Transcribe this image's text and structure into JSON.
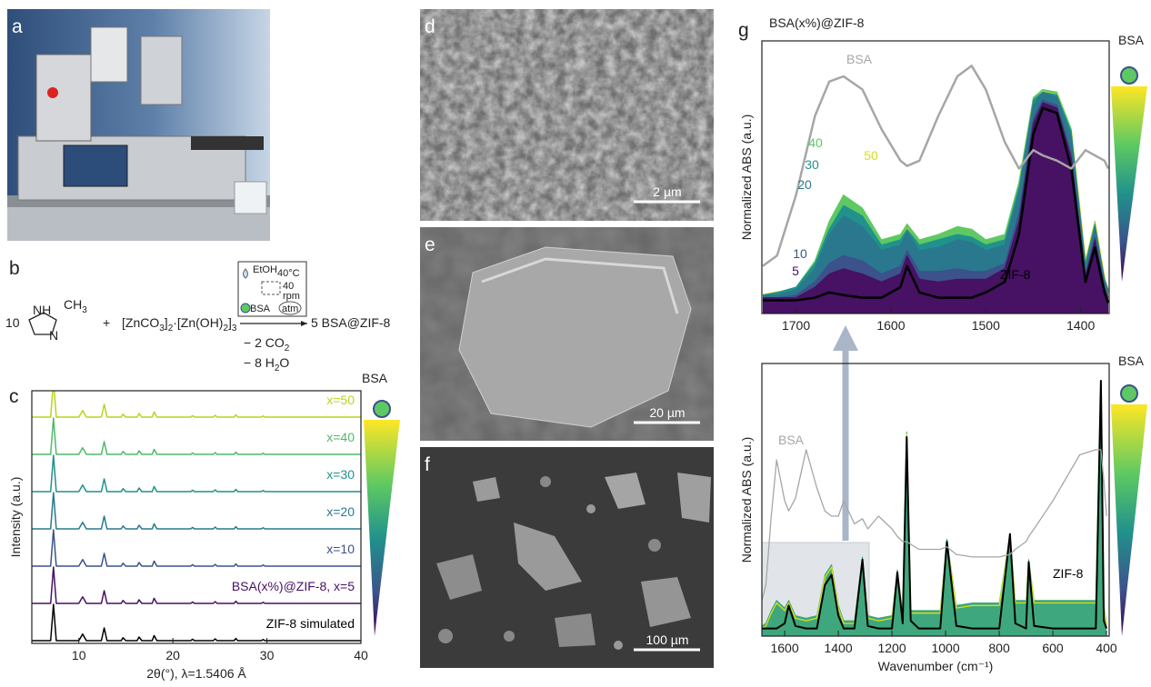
{
  "panel_labels": [
    "a",
    "b",
    "c",
    "d",
    "e",
    "f",
    "g"
  ],
  "scheme": {
    "coefficient": "10",
    "imidazole": [
      "NH",
      "CH",
      "3",
      "N"
    ],
    "plus": "+",
    "zinc": [
      "[ZnCO",
      "3",
      "]",
      "2",
      "·[Zn(OH)",
      "2",
      "]",
      "3"
    ],
    "product": "5 BSA@ZIF-8",
    "byproducts": [
      [
        "− 2 CO",
        "2"
      ],
      [
        "− 8 H",
        "2",
        "O"
      ]
    ],
    "conditions": {
      "solvent": "EtOH",
      "temperature": "40°C",
      "speed": [
        "40",
        "rpm"
      ],
      "additive": "BSA",
      "atmosphere": "atm"
    }
  },
  "micrographs": [
    {
      "scale_bar": "2 µm"
    },
    {
      "scale_bar": "20 µm"
    },
    {
      "scale_bar": "100 µm"
    }
  ],
  "chart_data": [
    {
      "type": "line",
      "x_label": "2θ(°), λ=1.5406 Å",
      "y_label": "Intensity (a.u.)",
      "gradient_label": "BSA",
      "xlim": [
        5,
        40
      ],
      "ylim": [
        0,
        100
      ],
      "xticks": [
        10,
        20,
        30,
        40
      ],
      "x": [
        5,
        7,
        7.3,
        7.6,
        10,
        10.4,
        10.8,
        12.4,
        12.7,
        13,
        14.5,
        14.7,
        15,
        16.2,
        16.4,
        16.7,
        17.8,
        18,
        18.3,
        21.9,
        22.1,
        22.3,
        24.3,
        24.5,
        24.7,
        26.5,
        26.7,
        26.9,
        29.4,
        29.6,
        29.8,
        40
      ],
      "series": [
        {
          "name": "ZIF-8 simulated",
          "color": "#000000",
          "values": [
            0,
            0,
            100,
            0,
            0,
            18,
            0,
            0,
            35,
            0,
            0,
            8,
            0,
            0,
            10,
            0,
            0,
            14,
            0,
            0,
            4,
            0,
            0,
            5,
            0,
            0,
            6,
            0,
            0,
            3,
            0,
            0
          ]
        },
        {
          "name": "BSA(x%)@ZIF-8, x=5",
          "color": "#471164",
          "values": [
            0,
            0,
            100,
            0,
            0,
            18,
            0,
            0,
            35,
            0,
            0,
            8,
            0,
            0,
            10,
            0,
            0,
            14,
            0,
            0,
            4,
            0,
            0,
            5,
            0,
            0,
            6,
            0,
            0,
            3,
            0,
            0
          ]
        },
        {
          "name": "x=10",
          "color": "#3b528b",
          "values": [
            0,
            0,
            100,
            0,
            0,
            18,
            0,
            0,
            35,
            0,
            0,
            8,
            0,
            0,
            10,
            0,
            0,
            14,
            0,
            0,
            4,
            0,
            0,
            5,
            0,
            0,
            6,
            0,
            0,
            3,
            0,
            0
          ]
        },
        {
          "name": "x=20",
          "color": "#2a788e",
          "values": [
            0,
            0,
            100,
            0,
            0,
            18,
            0,
            0,
            35,
            0,
            0,
            8,
            0,
            0,
            10,
            0,
            0,
            14,
            0,
            0,
            4,
            0,
            0,
            5,
            0,
            0,
            6,
            0,
            0,
            3,
            0,
            0
          ]
        },
        {
          "name": "x=30",
          "color": "#21918c",
          "values": [
            0,
            0,
            100,
            0,
            0,
            18,
            0,
            0,
            35,
            0,
            0,
            8,
            0,
            0,
            10,
            0,
            0,
            14,
            0,
            0,
            4,
            0,
            0,
            5,
            0,
            0,
            6,
            0,
            0,
            3,
            0,
            0
          ]
        },
        {
          "name": "x=40",
          "color": "#4fba6a",
          "values": [
            0,
            0,
            100,
            0,
            0,
            18,
            0,
            0,
            35,
            0,
            0,
            8,
            0,
            0,
            10,
            0,
            0,
            14,
            0,
            0,
            4,
            0,
            0,
            5,
            0,
            0,
            6,
            0,
            0,
            3,
            0,
            0
          ]
        },
        {
          "name": "x=50",
          "color": "#b9d41e",
          "values": [
            0,
            0,
            100,
            0,
            0,
            18,
            0,
            0,
            35,
            0,
            0,
            8,
            0,
            0,
            10,
            0,
            0,
            14,
            0,
            0,
            4,
            0,
            0,
            5,
            0,
            0,
            6,
            0,
            0,
            3,
            0,
            0
          ]
        }
      ]
    },
    {
      "type": "line",
      "title": "BSA(x%)@ZIF-8",
      "y_label": "Normalized ABS (a.u.)",
      "gradient_label": "BSA",
      "xlim": [
        1736,
        1370
      ],
      "ylim": [
        0,
        100
      ],
      "xticks": [
        1700,
        1600,
        1500,
        1400
      ],
      "x": [
        1735,
        1720,
        1700,
        1680,
        1665,
        1650,
        1630,
        1610,
        1590,
        1583,
        1570,
        1550,
        1530,
        1515,
        1500,
        1480,
        1465,
        1450,
        1440,
        1425,
        1410,
        1395,
        1385,
        1375,
        1371
      ],
      "series": [
        {
          "name": "40",
          "color": "#5ec962",
          "fill": true,
          "values": [
            7,
            8,
            10,
            20,
            35,
            45,
            40,
            28,
            30,
            34,
            28,
            30,
            33,
            32,
            28,
            30,
            50,
            82,
            85,
            84,
            70,
            20,
            35,
            14,
            9
          ]
        },
        {
          "name": "50",
          "color": "#d4e11a",
          "fill": false,
          "values": [
            7,
            8,
            9,
            18,
            31,
            39,
            35,
            25,
            27,
            32,
            25,
            26,
            29,
            28,
            25,
            27,
            47,
            80,
            84,
            83,
            68,
            19,
            34,
            13,
            8
          ]
        },
        {
          "name": "30",
          "color": "#21918c",
          "fill": true,
          "values": [
            7,
            8,
            10,
            19,
            32,
            41,
            37,
            26,
            28,
            32,
            26,
            28,
            30,
            29,
            26,
            28,
            48,
            81,
            84,
            83,
            69,
            19,
            34,
            13,
            9
          ]
        },
        {
          "name": "20",
          "color": "#2a788e",
          "fill": true,
          "values": [
            7,
            7,
            9,
            17,
            30,
            37,
            33,
            24,
            26,
            31,
            24,
            25,
            28,
            27,
            24,
            26,
            46,
            79,
            84,
            82,
            67,
            18,
            33,
            13,
            8
          ]
        },
        {
          "name": "10",
          "color": "#3b528b",
          "fill": true,
          "values": [
            6,
            6,
            7,
            12,
            19,
            22,
            20,
            15,
            18,
            24,
            16,
            16,
            17,
            16,
            16,
            19,
            38,
            74,
            81,
            79,
            61,
            15,
            29,
            10,
            6
          ]
        },
        {
          "name": "5",
          "color": "#471164",
          "fill": true,
          "values": [
            6,
            6,
            6,
            10,
            15,
            17,
            15,
            12,
            15,
            22,
            13,
            12,
            13,
            13,
            13,
            17,
            35,
            72,
            80,
            78,
            59,
            14,
            28,
            10,
            5
          ]
        },
        {
          "name": "ZIF-8",
          "color": "#000000",
          "fill": false,
          "values": [
            5,
            5,
            5,
            6,
            8,
            7,
            6,
            6,
            10,
            18,
            8,
            6,
            6,
            6,
            8,
            12,
            30,
            68,
            78,
            76,
            55,
            12,
            25,
            8,
            4
          ]
        },
        {
          "name": "BSA",
          "color": "#a6a6a6",
          "fill": false,
          "values": [
            18,
            22,
            45,
            75,
            88,
            90,
            85,
            70,
            58,
            56,
            58,
            75,
            90,
            94,
            85,
            65,
            55,
            62,
            60,
            58,
            55,
            62,
            60,
            58,
            55
          ]
        }
      ]
    },
    {
      "type": "line",
      "x_label": "Wavenumber (cm⁻¹)",
      "y_label": "Normalized ABS (a.u.)",
      "gradient_label": "BSA",
      "xlim": [
        1685,
        390
      ],
      "ylim": [
        0,
        105
      ],
      "xticks": [
        1600,
        1400,
        1200,
        1000,
        800,
        600,
        400
      ],
      "x": [
        1685,
        1670,
        1650,
        1630,
        1600,
        1585,
        1560,
        1520,
        1480,
        1450,
        1425,
        1400,
        1380,
        1340,
        1310,
        1290,
        1250,
        1200,
        1180,
        1160,
        1145,
        1130,
        1100,
        1020,
        995,
        960,
        900,
        800,
        760,
        740,
        700,
        690,
        670,
        600,
        500,
        440,
        421,
        410,
        400
      ],
      "series": [
        {
          "color": "#3fa77d",
          "fill": true,
          "values": [
            4,
            5,
            10,
            14,
            11,
            14,
            8,
            7,
            8,
            24,
            28,
            12,
            6,
            6,
            31,
            8,
            7,
            8,
            26,
            9,
            80,
            10,
            10,
            10,
            38,
            12,
            13,
            13,
            40,
            14,
            14,
            30,
            14,
            14,
            14,
            14,
            100,
            12,
            5
          ]
        },
        {
          "color": "#d4e11a",
          "fill": false,
          "values": [
            3,
            4,
            9,
            13,
            10,
            13,
            7,
            6,
            7,
            23,
            27,
            11,
            5,
            5,
            30,
            7,
            6,
            7,
            25,
            8,
            79,
            9,
            9,
            9,
            37,
            11,
            12,
            12,
            39,
            13,
            13,
            29,
            13,
            13,
            13,
            13,
            99,
            11,
            4
          ]
        },
        {
          "name": "ZIF-8",
          "color": "#000000",
          "fill": false,
          "values": [
            3,
            3,
            3,
            3,
            5,
            12,
            4,
            3,
            3,
            20,
            24,
            8,
            3,
            3,
            30,
            4,
            3,
            3,
            25,
            5,
            78,
            6,
            3,
            3,
            37,
            4,
            3,
            3,
            40,
            5,
            3,
            29,
            4,
            3,
            3,
            3,
            100,
            6,
            3
          ]
        },
        {
          "name": "BSA",
          "color": "#a6a6a6",
          "fill": false,
          "values": [
            14,
            20,
            47,
            69,
            53,
            49,
            54,
            73,
            58,
            49,
            47,
            47,
            53,
            44,
            46,
            42,
            47,
            42,
            39,
            37,
            37,
            36,
            34,
            34,
            35,
            32,
            31,
            31,
            32,
            34,
            37,
            39,
            42,
            53,
            71,
            73,
            73,
            61,
            47
          ]
        }
      ]
    }
  ]
}
